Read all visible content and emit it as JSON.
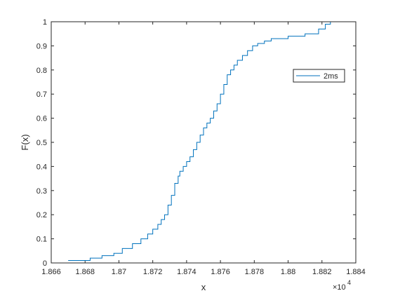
{
  "chart_data": {
    "type": "line",
    "title": "",
    "xlabel": "x",
    "ylabel": "F(x)",
    "x_exponent_label": "×10",
    "x_exponent_power": "4",
    "xlim": [
      1.866,
      1.884
    ],
    "ylim": [
      0,
      1
    ],
    "x_ticks": [
      1.866,
      1.868,
      1.87,
      1.872,
      1.874,
      1.876,
      1.878,
      1.88,
      1.882,
      1.884
    ],
    "x_tick_labels": [
      "1.866",
      "1.868",
      "1.87",
      "1.872",
      "1.874",
      "1.876",
      "1.878",
      "1.88",
      "1.882",
      "1.884"
    ],
    "y_ticks": [
      0,
      0.1,
      0.2,
      0.3,
      0.4,
      0.5,
      0.6,
      0.7,
      0.8,
      0.9,
      1
    ],
    "y_tick_labels": [
      "0",
      "0.1",
      "0.2",
      "0.3",
      "0.4",
      "0.5",
      "0.6",
      "0.7",
      "0.8",
      "0.9",
      "1"
    ],
    "grid": false,
    "legend_position": "top-right",
    "series": [
      {
        "name": "2ms",
        "color": "#0072BD",
        "step": true,
        "x": [
          1.867,
          1.8683,
          1.869,
          1.8697,
          1.8702,
          1.8708,
          1.8713,
          1.8717,
          1.872,
          1.8723,
          1.8725,
          1.8727,
          1.8729,
          1.8731,
          1.8733,
          1.8735,
          1.8736,
          1.8738,
          1.874,
          1.8742,
          1.8744,
          1.8746,
          1.8748,
          1.875,
          1.8752,
          1.8754,
          1.8756,
          1.8758,
          1.876,
          1.8762,
          1.8764,
          1.8766,
          1.8768,
          1.877,
          1.8773,
          1.8776,
          1.8779,
          1.8782,
          1.8786,
          1.879,
          1.8795,
          1.88,
          1.881,
          1.8818,
          1.8822,
          1.8825
        ],
        "y": [
          0.01,
          0.02,
          0.03,
          0.04,
          0.06,
          0.08,
          0.1,
          0.12,
          0.14,
          0.16,
          0.18,
          0.2,
          0.24,
          0.28,
          0.33,
          0.36,
          0.38,
          0.4,
          0.42,
          0.44,
          0.47,
          0.5,
          0.53,
          0.56,
          0.58,
          0.6,
          0.63,
          0.66,
          0.7,
          0.74,
          0.78,
          0.8,
          0.82,
          0.84,
          0.86,
          0.88,
          0.9,
          0.91,
          0.92,
          0.93,
          0.93,
          0.94,
          0.95,
          0.97,
          0.99,
          1.0
        ]
      }
    ]
  }
}
